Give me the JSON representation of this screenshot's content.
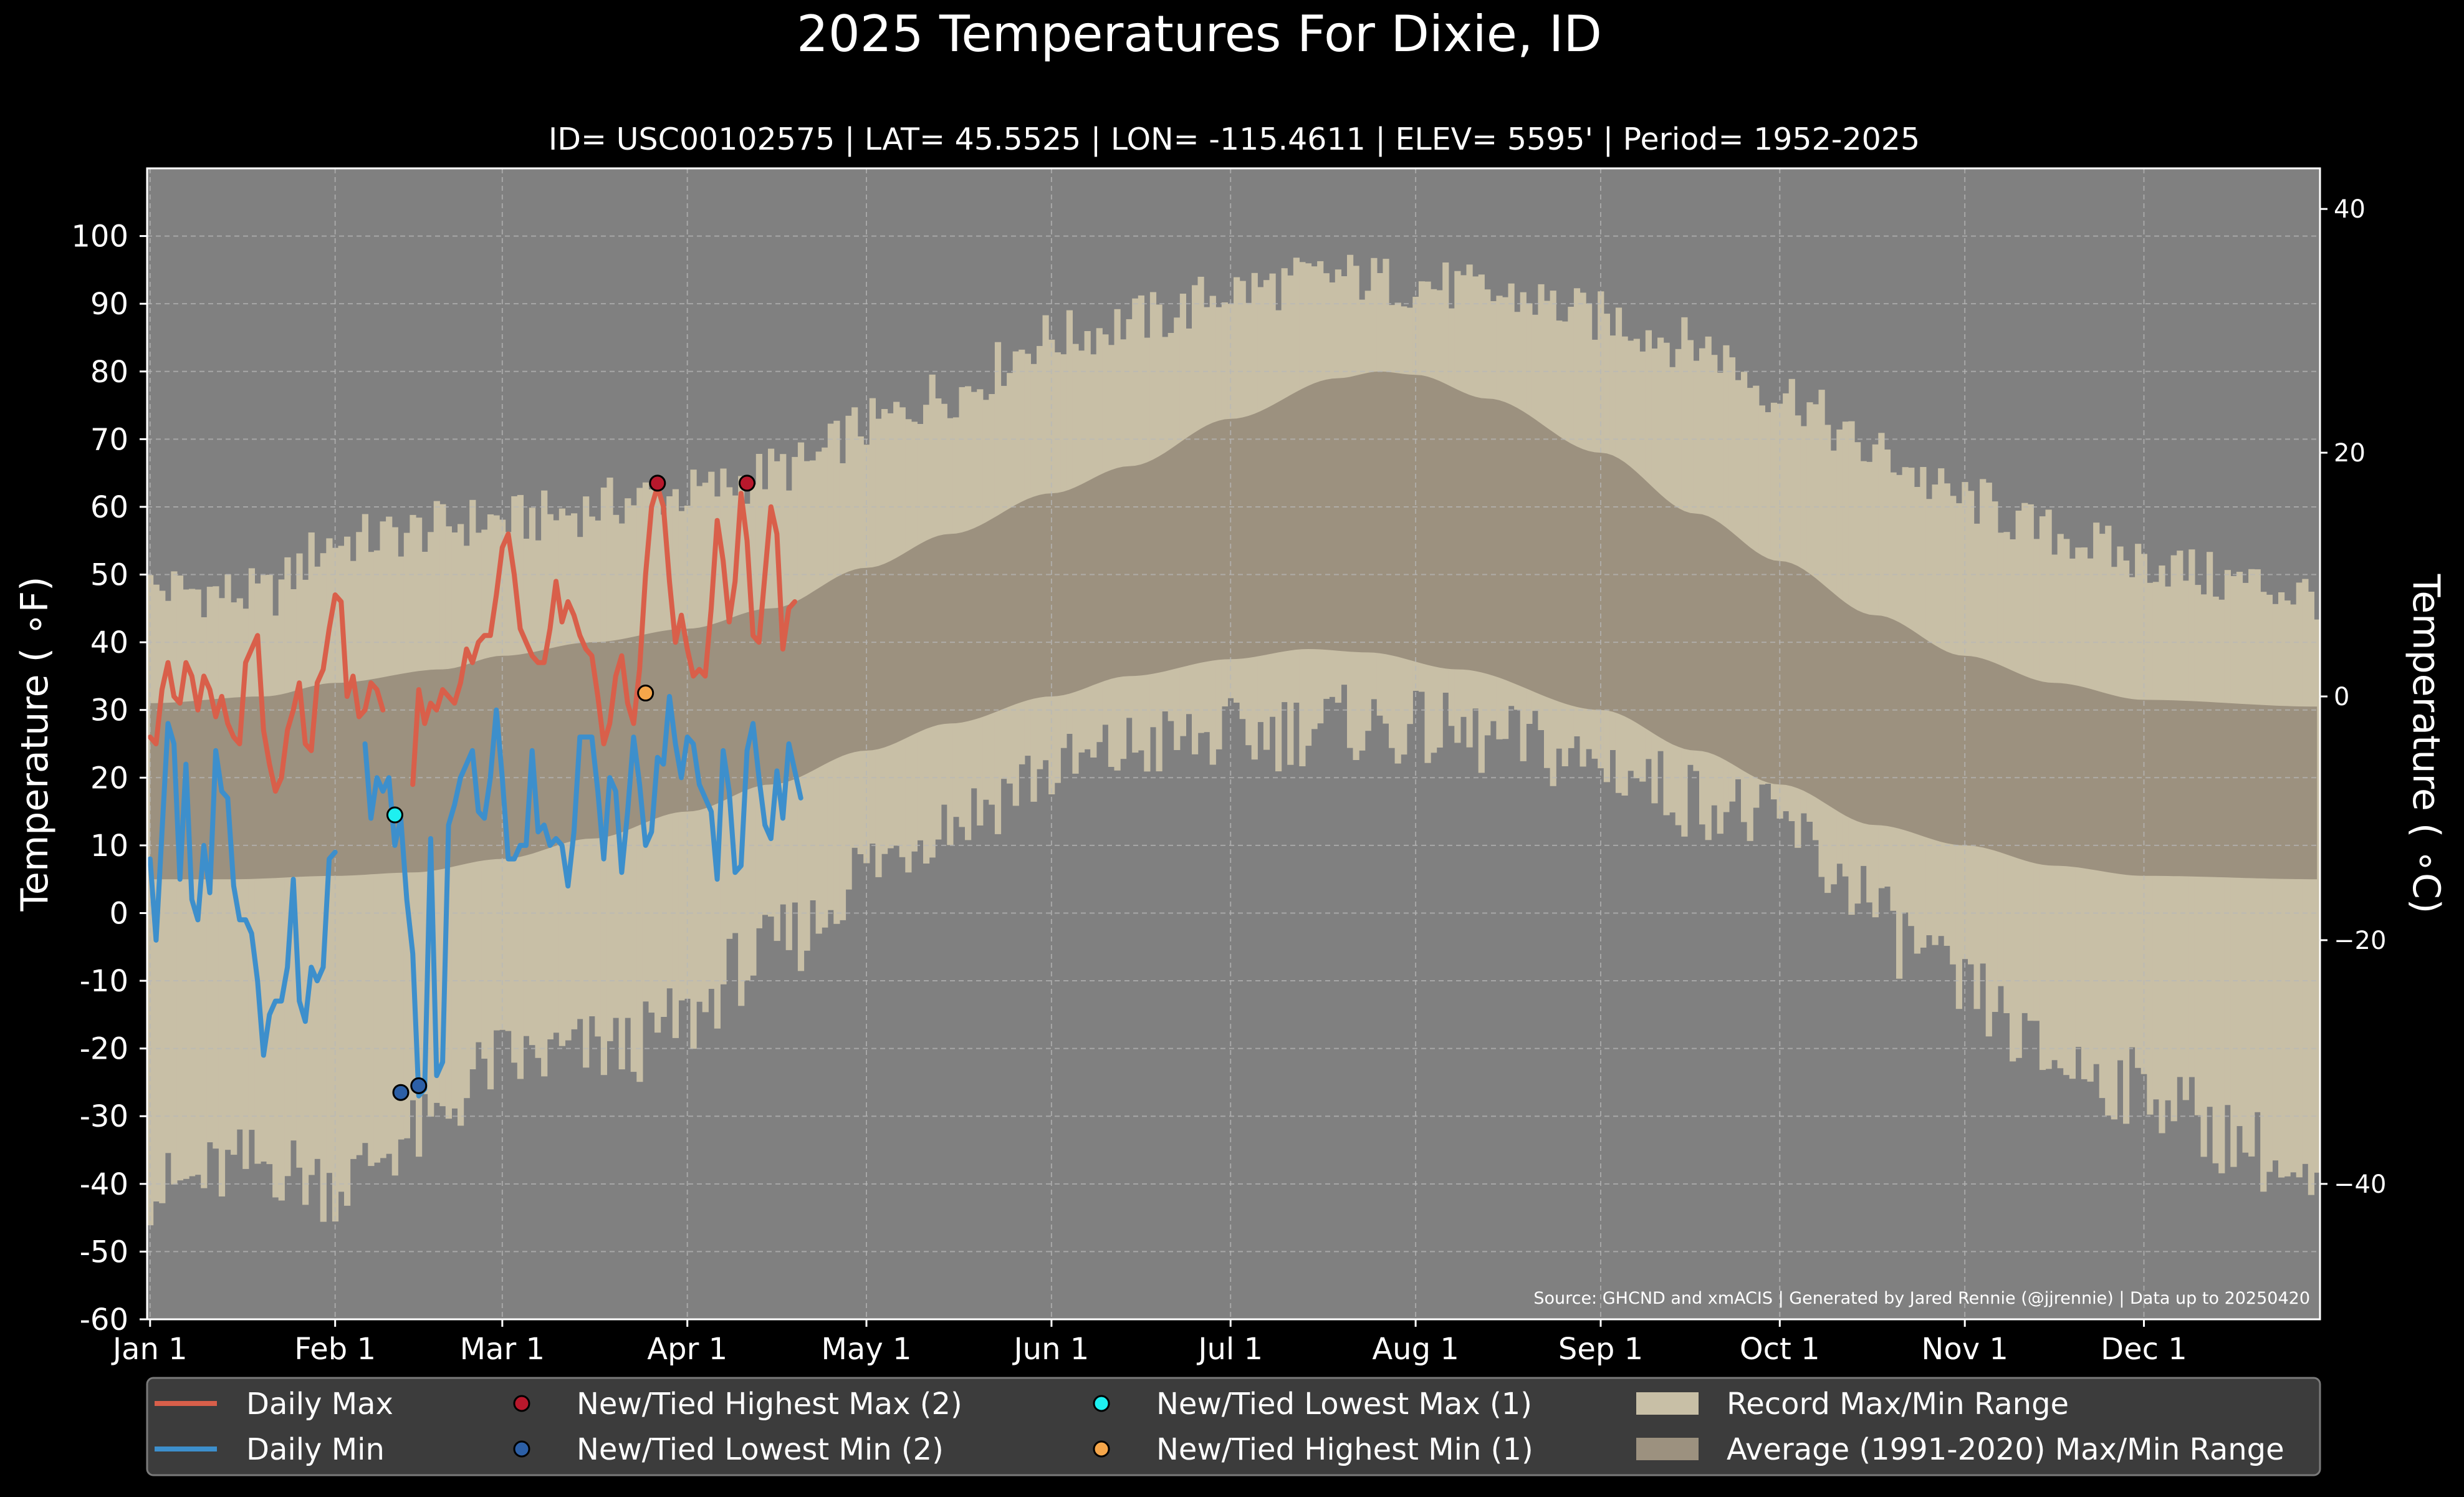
{
  "chart_data": {
    "type": "line",
    "title": "2025 Temperatures For Dixie, ID",
    "subtitle": "ID= USC00102575 | LAT= 45.5525 | LON= -115.4611 | ELEV= 5595' | Period= 1952-2025",
    "ylabel": "Temperature ( ∘F)",
    "ylabel_right": "Temperature ( ∘C)",
    "source": "Source: GHCND and xmACIS | Generated by Jared Rennie (@jjrennie) | Data up to 20250420",
    "ylim_f": [
      -60,
      110
    ],
    "xlim_day": [
      0.5,
      364.5
    ],
    "y_ticks": [
      -60,
      -50,
      -40,
      -30,
      -20,
      -10,
      0,
      10,
      20,
      30,
      40,
      50,
      60,
      70,
      80,
      90,
      100
    ],
    "y_ticks_c": [
      -40,
      -20,
      0,
      20,
      40
    ],
    "x_ticks": [
      {
        "label": "Jan 1",
        "day": 1
      },
      {
        "label": "Feb 1",
        "day": 32
      },
      {
        "label": "Mar 1",
        "day": 60
      },
      {
        "label": "Apr 1",
        "day": 91
      },
      {
        "label": "May 1",
        "day": 121
      },
      {
        "label": "Jun 1",
        "day": 152
      },
      {
        "label": "Jul 1",
        "day": 182
      },
      {
        "label": "Aug 1",
        "day": 213
      },
      {
        "label": "Sep 1",
        "day": 244
      },
      {
        "label": "Oct 1",
        "day": 274
      },
      {
        "label": "Nov 1",
        "day": 305
      },
      {
        "label": "Dec 1",
        "day": 335
      }
    ],
    "grid": true,
    "legend_position": "bottom",
    "colors": {
      "background": "#000000",
      "plot_bg": "#808080",
      "record_band": "#c8bfa6",
      "normal_band": "#9c917f",
      "daily_max": "#d95f4a",
      "daily_min": "#3d8fcc",
      "new_high_max": "#b8182c",
      "new_low_min": "#2c5fa6",
      "new_low_max": "#1ef0f0",
      "new_high_min": "#f5a64a"
    },
    "record_max_knots": [
      [
        1,
        48
      ],
      [
        20,
        47
      ],
      [
        32,
        55
      ],
      [
        60,
        58
      ],
      [
        91,
        62
      ],
      [
        110,
        66
      ],
      [
        121,
        72
      ],
      [
        135,
        77
      ],
      [
        152,
        85
      ],
      [
        170,
        88
      ],
      [
        182,
        92
      ],
      [
        200,
        94
      ],
      [
        213,
        93
      ],
      [
        230,
        91
      ],
      [
        244,
        88
      ],
      [
        260,
        84
      ],
      [
        274,
        77
      ],
      [
        290,
        68
      ],
      [
        305,
        61
      ],
      [
        320,
        56
      ],
      [
        335,
        52
      ],
      [
        350,
        49
      ],
      [
        364,
        47
      ]
    ],
    "record_min_knots": [
      [
        1,
        -41
      ],
      [
        20,
        -37
      ],
      [
        32,
        -40
      ],
      [
        45,
        -33
      ],
      [
        60,
        -22
      ],
      [
        80,
        -20
      ],
      [
        91,
        -16
      ],
      [
        100,
        -8
      ],
      [
        110,
        -3
      ],
      [
        121,
        7
      ],
      [
        135,
        14
      ],
      [
        152,
        21
      ],
      [
        170,
        25
      ],
      [
        182,
        26
      ],
      [
        200,
        28
      ],
      [
        213,
        27
      ],
      [
        230,
        25
      ],
      [
        244,
        22
      ],
      [
        260,
        17
      ],
      [
        274,
        13
      ],
      [
        285,
        5
      ],
      [
        295,
        -4
      ],
      [
        305,
        -12
      ],
      [
        320,
        -22
      ],
      [
        335,
        -26
      ],
      [
        350,
        -33
      ],
      [
        364,
        -42
      ]
    ],
    "normal_max_knots": [
      [
        1,
        31
      ],
      [
        20,
        32
      ],
      [
        32,
        34
      ],
      [
        50,
        36
      ],
      [
        60,
        38
      ],
      [
        75,
        40
      ],
      [
        91,
        42
      ],
      [
        105,
        45
      ],
      [
        121,
        51
      ],
      [
        135,
        56
      ],
      [
        152,
        62
      ],
      [
        165,
        66
      ],
      [
        182,
        73
      ],
      [
        200,
        79
      ],
      [
        207,
        80
      ],
      [
        213,
        79.5
      ],
      [
        225,
        76
      ],
      [
        244,
        68
      ],
      [
        260,
        59
      ],
      [
        274,
        52
      ],
      [
        290,
        44
      ],
      [
        305,
        38
      ],
      [
        320,
        34
      ],
      [
        335,
        31.5
      ],
      [
        364,
        30.5
      ]
    ],
    "normal_min_knots": [
      [
        1,
        5
      ],
      [
        15,
        5
      ],
      [
        32,
        5.5
      ],
      [
        45,
        6
      ],
      [
        60,
        8
      ],
      [
        75,
        11
      ],
      [
        91,
        15
      ],
      [
        105,
        19
      ],
      [
        121,
        24
      ],
      [
        135,
        28
      ],
      [
        152,
        32
      ],
      [
        165,
        35
      ],
      [
        182,
        37.5
      ],
      [
        195,
        39
      ],
      [
        205,
        38.5
      ],
      [
        220,
        36
      ],
      [
        244,
        30
      ],
      [
        260,
        24
      ],
      [
        274,
        19
      ],
      [
        290,
        13
      ],
      [
        305,
        10
      ],
      [
        320,
        7
      ],
      [
        335,
        5.5
      ],
      [
        364,
        5
      ]
    ],
    "series": [
      {
        "name": "Daily Max",
        "x_start_day": 1,
        "values": [
          26,
          25,
          33,
          37,
          32,
          31,
          37,
          35,
          30,
          35,
          33,
          29,
          32,
          28,
          26,
          25,
          37,
          39,
          41,
          27,
          22,
          18,
          20,
          27,
          30,
          34,
          25,
          24,
          34,
          36,
          42,
          47,
          46,
          32,
          35,
          29,
          30,
          34,
          33,
          30,
          null,
          null,
          null,
          null,
          19,
          33,
          28,
          31,
          30,
          33,
          32,
          31,
          34,
          39,
          37,
          40,
          41,
          41,
          47,
          54,
          56,
          50,
          42,
          40,
          38,
          37,
          37,
          42,
          49,
          43,
          46,
          44,
          41,
          39,
          38,
          32,
          25,
          28,
          35,
          38,
          31,
          28,
          36,
          50,
          60,
          63,
          60,
          49,
          40,
          44,
          39,
          35,
          36,
          35,
          45,
          58,
          52,
          43,
          49,
          62,
          55,
          41,
          40,
          50,
          60,
          56,
          39,
          45,
          46
        ]
      },
      {
        "name": "Daily Min",
        "x_start_day": 1,
        "values": [
          8,
          -4,
          12,
          28,
          25,
          5,
          22,
          2,
          -1,
          10,
          3,
          24,
          18,
          17,
          4,
          -1,
          -1,
          -3,
          -10,
          -21,
          -15,
          -13,
          -13,
          -8,
          5,
          -13,
          -16,
          -8,
          -10,
          -8,
          8,
          9,
          null,
          null,
          null,
          null,
          25,
          14,
          20,
          18,
          20,
          10,
          14,
          2,
          -6,
          -27,
          -26,
          11,
          -24,
          -22,
          13,
          16,
          20,
          22,
          24,
          15,
          14,
          20,
          30,
          20,
          8,
          8,
          10,
          10,
          24,
          12,
          13,
          10,
          11,
          10,
          4,
          12,
          26,
          26,
          26,
          18,
          8,
          20,
          18,
          6,
          15,
          26,
          19,
          10,
          12,
          23,
          22,
          32,
          25,
          20,
          26,
          25,
          19,
          17,
          15,
          5,
          24,
          18,
          6,
          7,
          24,
          28,
          20,
          13,
          11,
          21,
          14,
          25,
          21,
          17
        ]
      }
    ],
    "record_markers": [
      {
        "name": "New/Tied Highest Max (2)",
        "points": [
          [
            86,
            63.5
          ],
          [
            101,
            63.5
          ]
        ]
      },
      {
        "name": "New/Tied Lowest Min (2)",
        "points": [
          [
            43,
            -26.5
          ],
          [
            46,
            -25.5
          ]
        ]
      },
      {
        "name": "New/Tied Lowest Max (1)",
        "points": [
          [
            42,
            14.5
          ]
        ]
      },
      {
        "name": "New/Tied Highest Min (1)",
        "points": [
          [
            84,
            32.5
          ]
        ]
      }
    ],
    "legend": [
      {
        "label": "Daily Max",
        "kind": "line",
        "color_key": "daily_max"
      },
      {
        "label": "Daily Min",
        "kind": "line",
        "color_key": "daily_min"
      },
      {
        "label": "New/Tied Highest Max (2)",
        "kind": "dot",
        "color_key": "new_high_max"
      },
      {
        "label": "New/Tied Lowest Min (2)",
        "kind": "dot",
        "color_key": "new_low_min"
      },
      {
        "label": "New/Tied Lowest Max (1)",
        "kind": "dot",
        "color_key": "new_low_max"
      },
      {
        "label": "New/Tied Highest Min (1)",
        "kind": "dot",
        "color_key": "new_high_min"
      },
      {
        "label": "Record Max/Min Range",
        "kind": "patch",
        "color_key": "record_band"
      },
      {
        "label": "Average (1991-2020) Max/Min Range",
        "kind": "patch",
        "color_key": "normal_band"
      }
    ]
  }
}
